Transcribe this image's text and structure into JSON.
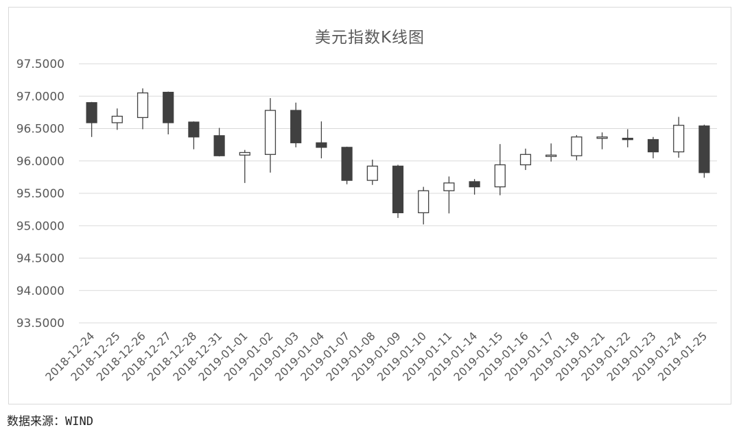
{
  "chart_data": {
    "type": "candlestick",
    "title": "美元指数K线图",
    "xlabel": "",
    "ylabel": "",
    "ylim": [
      93.5,
      97.5
    ],
    "yticks": [
      97.5,
      97.0,
      96.5,
      96.0,
      95.5,
      95.0,
      94.5,
      94.0,
      93.5
    ],
    "ytick_labels": [
      "97.5000",
      "97.0000",
      "96.5000",
      "96.0000",
      "95.5000",
      "95.0000",
      "94.5000",
      "94.0000",
      "93.5000"
    ],
    "grid": true,
    "legend": "none",
    "colors": {
      "up": "#ffffff",
      "down": "#404040",
      "outline": "#404040",
      "grid": "#d9d9d9",
      "axis_text": "#595959"
    },
    "categories": [
      "2018-12-24",
      "2018-12-25",
      "2018-12-26",
      "2018-12-27",
      "2018-12-28",
      "2018-12-31",
      "2019-01-01",
      "2019-01-02",
      "2019-01-03",
      "2019-01-04",
      "2019-01-07",
      "2019-01-08",
      "2019-01-09",
      "2019-01-10",
      "2019-01-11",
      "2019-01-14",
      "2019-01-15",
      "2019-01-16",
      "2019-01-17",
      "2019-01-18",
      "2019-01-21",
      "2019-01-22",
      "2019-01-23",
      "2019-01-24",
      "2019-01-25"
    ],
    "series": [
      {
        "open": [
          96.9,
          96.59,
          96.67,
          97.06,
          96.6,
          96.39,
          96.09,
          96.1,
          96.78,
          96.28,
          96.21,
          95.7,
          95.92,
          95.2,
          95.54,
          95.68,
          95.6,
          95.94,
          96.07,
          96.08,
          96.35,
          96.35,
          96.33,
          96.14,
          96.54
        ],
        "high": [
          96.91,
          96.81,
          97.12,
          97.07,
          96.61,
          96.51,
          96.17,
          96.97,
          96.9,
          96.61,
          96.22,
          96.02,
          95.94,
          95.6,
          95.76,
          95.72,
          96.26,
          96.19,
          96.27,
          96.4,
          96.44,
          96.49,
          96.37,
          96.68,
          96.56
        ],
        "low": [
          96.37,
          96.48,
          96.49,
          96.41,
          96.18,
          96.07,
          95.66,
          95.82,
          96.21,
          96.04,
          95.64,
          95.63,
          95.12,
          95.02,
          95.19,
          95.48,
          95.47,
          95.86,
          95.99,
          96.01,
          96.18,
          96.21,
          96.04,
          96.05,
          95.74
        ],
        "close": [
          96.59,
          96.69,
          97.05,
          96.59,
          96.37,
          96.08,
          96.13,
          96.78,
          96.28,
          96.21,
          95.7,
          95.92,
          95.2,
          95.54,
          95.66,
          95.6,
          95.94,
          96.1,
          96.09,
          96.37,
          96.37,
          96.33,
          96.14,
          96.55,
          95.82
        ]
      }
    ]
  },
  "source_note": "数据来源：WIND"
}
